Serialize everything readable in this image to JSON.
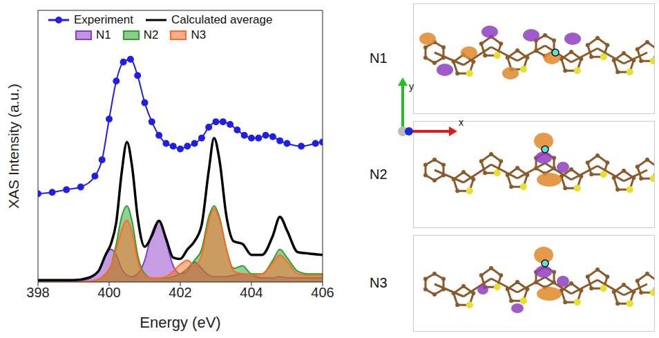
{
  "chart_data": {
    "type": "line",
    "xlabel": "Energy (eV)",
    "ylabel": "XAS Intensity (a.u.)",
    "xlim": [
      398,
      406
    ],
    "xticks": [
      398,
      400,
      402,
      404,
      406
    ],
    "ylim": [
      0,
      100
    ],
    "yticks": [],
    "tick_labels": "x",
    "grid": false,
    "legend": "top-left",
    "series": [
      {
        "name": "N1",
        "type": "area",
        "color": "#8a3cc8",
        "x": [
          398,
          399,
          399.4,
          399.7,
          399.9,
          400.05,
          400.2,
          400.35,
          400.5,
          400.65,
          400.8,
          401.0,
          401.2,
          401.4,
          401.6,
          401.8,
          402.0,
          402.2,
          402.4,
          402.6,
          402.8,
          402.95,
          403.1,
          403.3,
          403.5,
          403.75,
          404.0,
          404.3,
          404.6,
          404.8,
          405.0,
          405.3,
          405.6,
          406
        ],
        "values": [
          0,
          0.2,
          1,
          4,
          10,
          12,
          10,
          5,
          2.5,
          2,
          3,
          8,
          18,
          22.5,
          15,
          6,
          3,
          4,
          7.4,
          5,
          2.5,
          2,
          2,
          2,
          2.5,
          3,
          2.5,
          1.5,
          1.5,
          2,
          1.5,
          1.5,
          1.5,
          1.5
        ]
      },
      {
        "name": "N2",
        "type": "area",
        "color": "#2ca02c",
        "x": [
          398,
          399,
          399.4,
          399.7,
          399.9,
          400.05,
          400.2,
          400.35,
          400.5,
          400.65,
          400.8,
          401.0,
          401.2,
          401.4,
          401.6,
          401.8,
          402.0,
          402.2,
          402.4,
          402.6,
          402.8,
          402.95,
          403.1,
          403.3,
          403.5,
          403.75,
          404.0,
          404.3,
          404.6,
          404.8,
          405.0,
          405.3,
          405.6,
          406
        ],
        "values": [
          0,
          0,
          0.2,
          1,
          3,
          6,
          14,
          24,
          28,
          22,
          10,
          3,
          1.5,
          1.5,
          1.5,
          2,
          3,
          5,
          8,
          12,
          24,
          28,
          24,
          12,
          5,
          6,
          3,
          3,
          8,
          12,
          9,
          4,
          3,
          3
        ]
      },
      {
        "name": "N3",
        "type": "area",
        "color": "#ff6a2a",
        "x": [
          398,
          399,
          399.4,
          399.7,
          399.9,
          400.05,
          400.2,
          400.35,
          400.5,
          400.65,
          400.8,
          401.0,
          401.2,
          401.4,
          401.6,
          401.8,
          402.0,
          402.2,
          402.4,
          402.6,
          402.8,
          402.95,
          403.1,
          403.3,
          403.5,
          403.75,
          404.0,
          404.3,
          404.6,
          404.8,
          405.0,
          405.3,
          405.6,
          406
        ],
        "values": [
          0,
          0,
          0.2,
          1,
          3,
          6,
          12,
          19,
          22.7,
          18,
          8,
          2.5,
          1.5,
          1.5,
          2,
          4,
          6.5,
          8,
          6,
          10,
          22,
          27,
          23,
          12,
          4,
          3,
          2.5,
          3,
          7,
          10,
          7.5,
          3,
          2.5,
          2.5
        ]
      },
      {
        "name": "Calculated average",
        "type": "line",
        "color": "#000000",
        "x": [
          398,
          399,
          399.4,
          399.7,
          399.9,
          400.05,
          400.2,
          400.35,
          400.5,
          400.65,
          400.8,
          401.0,
          401.2,
          401.4,
          401.6,
          401.8,
          402.0,
          402.2,
          402.4,
          402.6,
          402.8,
          402.95,
          403.1,
          403.3,
          403.5,
          403.75,
          404.0,
          404.3,
          404.6,
          404.8,
          405.0,
          405.3,
          405.6,
          406
        ],
        "values": [
          0.7,
          0.7,
          1.5,
          4,
          10,
          14,
          22,
          40,
          51.5,
          42,
          24,
          13,
          17,
          22.5,
          16,
          9,
          8.5,
          12,
          15,
          21,
          41,
          53,
          45,
          24,
          15,
          14,
          10,
          10,
          17,
          24,
          19,
          11,
          10.5,
          10
        ]
      },
      {
        "name": "Experiment",
        "type": "line",
        "marker": "circle",
        "color": "#1f1fe6",
        "x": [
          398,
          398.4,
          398.8,
          399.2,
          399.6,
          399.8,
          400,
          400.2,
          400.4,
          400.6,
          400.8,
          401,
          401.2,
          401.4,
          401.6,
          401.8,
          402,
          402.2,
          402.4,
          402.6,
          402.8,
          403,
          403.2,
          403.4,
          403.6,
          403.8,
          404,
          404.2,
          404.4,
          404.6,
          404.8,
          405,
          405.4,
          405.8,
          406
        ],
        "values": [
          32.5,
          33,
          34,
          35,
          39,
          45,
          60,
          74,
          81,
          82,
          76,
          66,
          59,
          54,
          51,
          50,
          49,
          50,
          51,
          53,
          57,
          59,
          59,
          58,
          56,
          54,
          53,
          53,
          54,
          53.5,
          52,
          51,
          50,
          51,
          51.5
        ]
      }
    ]
  },
  "panels": {
    "labels": [
      "N1",
      "N2",
      "N3"
    ],
    "axes": [
      "x",
      "y"
    ]
  }
}
